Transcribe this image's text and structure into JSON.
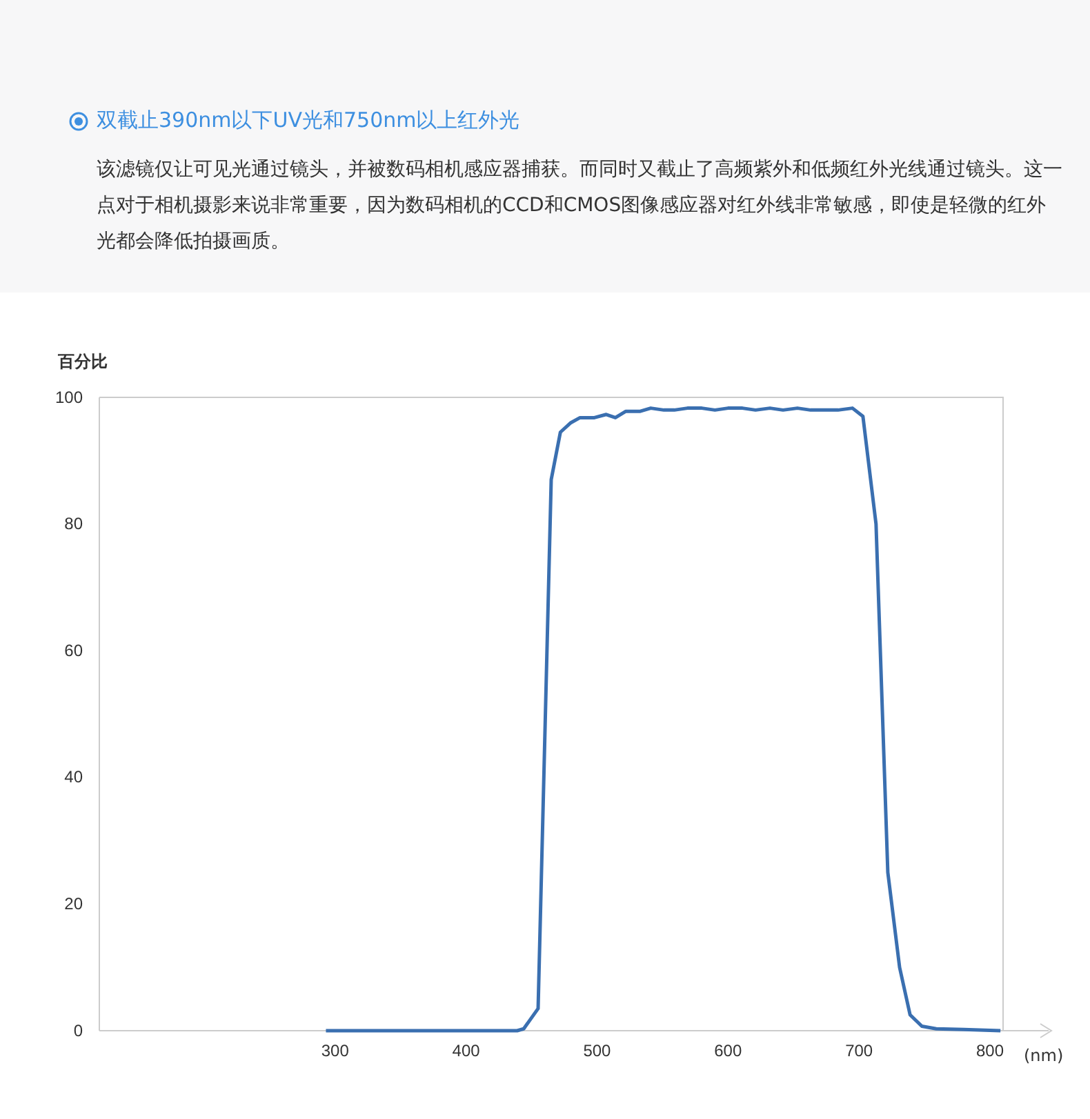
{
  "chart_data": {
    "type": "line",
    "title": "双截止390nm以下UV光和750nm以上红外光",
    "subtitle": "该滤镜仅让可见光通过镜头，并被数码相机感应器捕获。而同时又截止了高频紫外和低频红外光线通过镜头。这一点对于相机摄影来说非常重要，因为数码相机的CCD和CMOS图像感应器对红外线非常敏感，即使是轻微的红外光都会降低拍摄画质。",
    "ylabel": "百分比",
    "xlabel": "(nm)",
    "xlim": [
      120,
      810
    ],
    "xticks": [
      300,
      400,
      500,
      600,
      700,
      800
    ],
    "ylim": [
      0,
      100
    ],
    "yticks": [
      0,
      20,
      40,
      60,
      80,
      100
    ],
    "grid": false,
    "x": [
      293,
      350,
      400,
      439,
      444,
      455,
      465,
      472,
      480,
      487,
      498,
      507,
      514,
      522,
      533,
      541,
      551,
      559,
      569,
      580,
      590,
      600,
      611,
      621,
      632,
      642,
      653,
      663,
      674,
      684,
      695,
      703,
      713,
      722,
      731,
      739,
      748,
      759,
      780,
      808
    ],
    "series": [
      {
        "color": "#3a6fb0",
        "values": [
          0,
          0,
          0,
          0,
          0.3,
          3.5,
          87,
          94.5,
          96,
          96.8,
          96.8,
          97.3,
          96.8,
          97.8,
          97.8,
          98.3,
          98,
          98,
          98.3,
          98.3,
          98,
          98.3,
          98.3,
          98,
          98.3,
          98,
          98.3,
          98,
          98,
          98,
          98.3,
          97,
          80,
          25,
          10,
          2.5,
          0.7,
          0.3,
          0.2,
          0
        ]
      }
    ]
  }
}
